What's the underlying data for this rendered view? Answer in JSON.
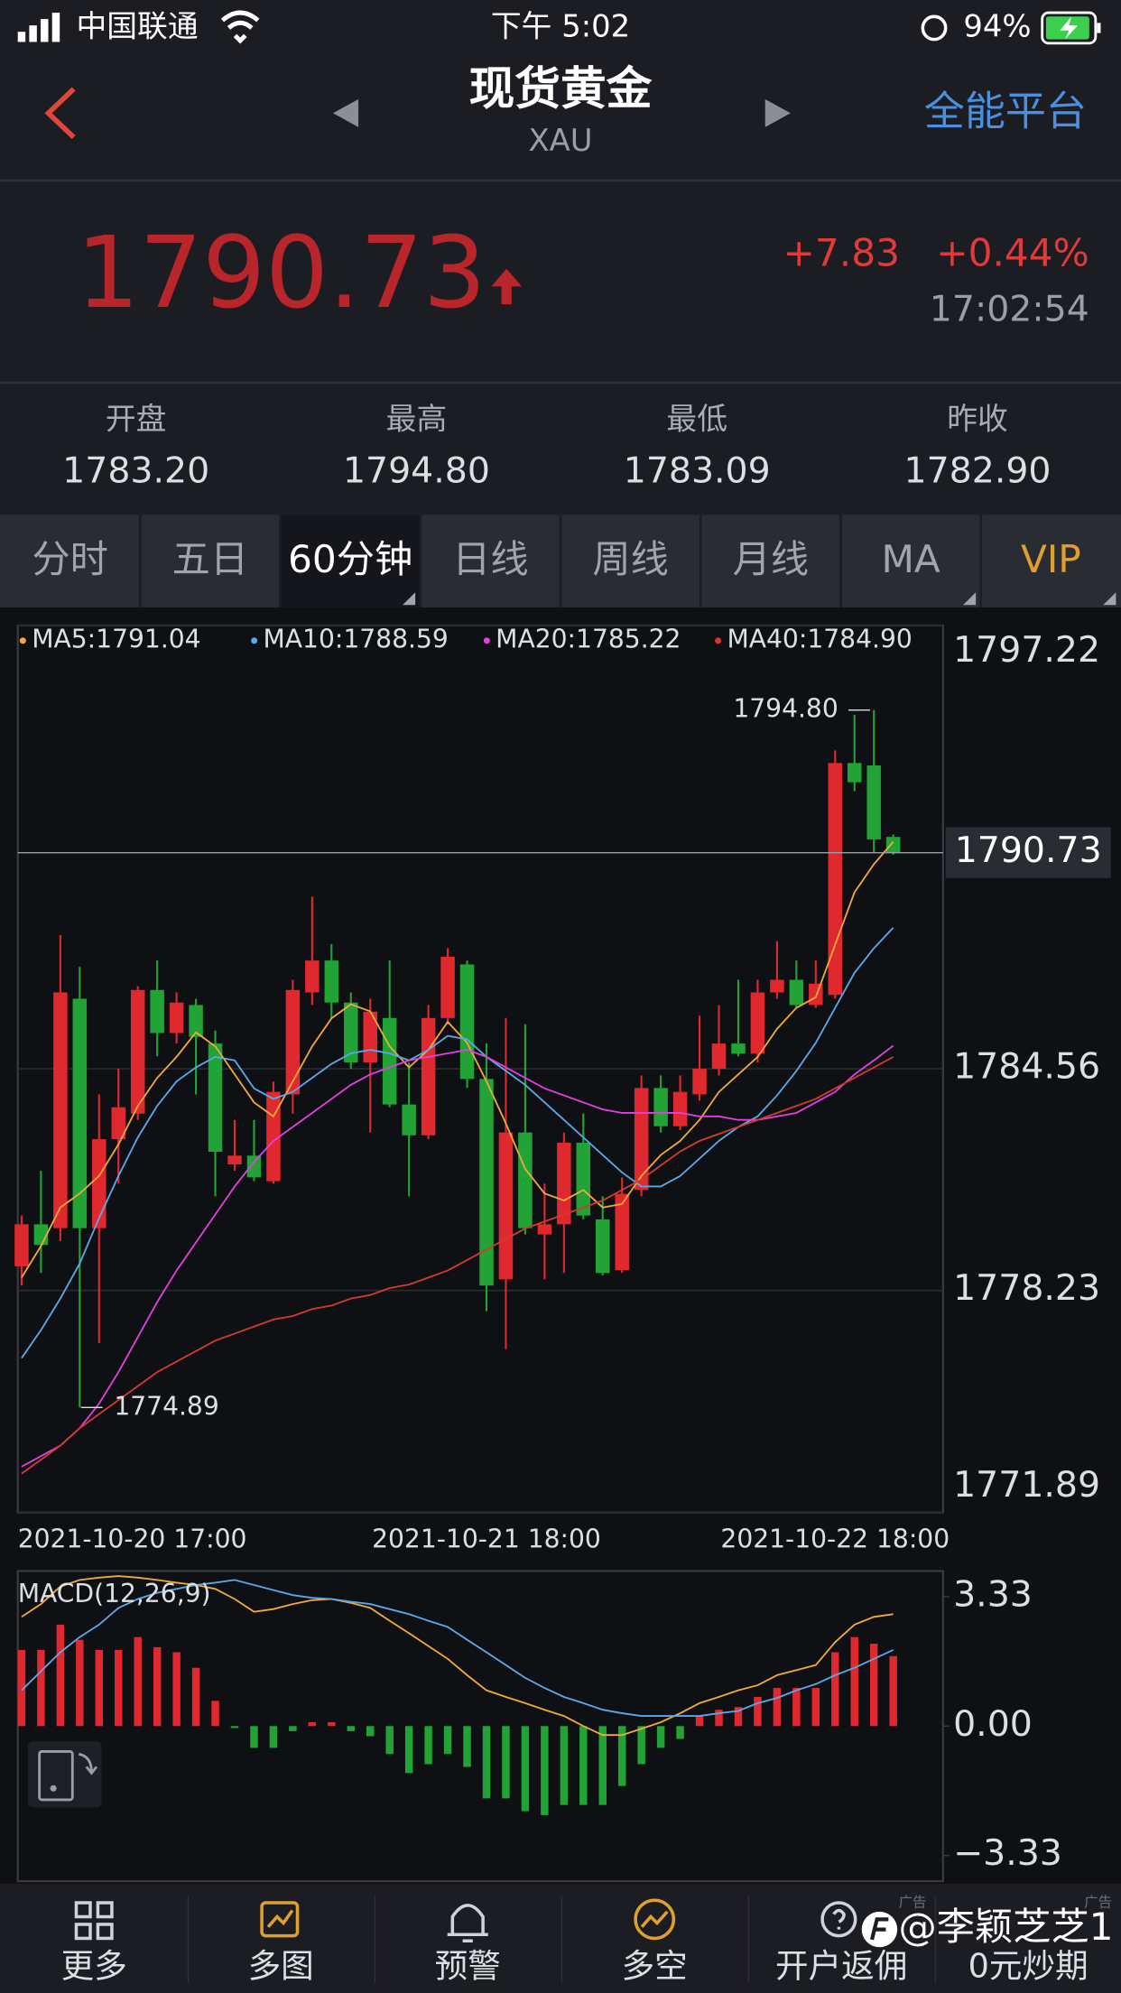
{
  "status_bar": {
    "carrier": "中国联通",
    "time": "下午 5:02",
    "battery": "94%"
  },
  "header": {
    "title": "现货黄金",
    "subtitle": "XAU",
    "platform": "全能平台"
  },
  "quote": {
    "price": "1790.73",
    "change": "+7.83",
    "change_pct": "+0.44%",
    "time": "17:02:54"
  },
  "stats": [
    {
      "label": "开盘",
      "value": "1783.20"
    },
    {
      "label": "最高",
      "value": "1794.80"
    },
    {
      "label": "最低",
      "value": "1783.09"
    },
    {
      "label": "昨收",
      "value": "1782.90"
    }
  ],
  "tabs": {
    "items": [
      "分时",
      "五日",
      "60分钟",
      "日线",
      "周线",
      "月线",
      "MA",
      "VIP"
    ],
    "selected": 2
  },
  "chart_data": [
    {
      "type": "candlestick",
      "up_color": "#e0292e",
      "down_color": "#21a336",
      "categories": [
        "2021-10-20 17:00",
        null,
        null,
        null,
        null,
        null,
        null,
        null,
        null,
        null,
        null,
        null,
        null,
        null,
        null,
        null,
        null,
        null,
        null,
        null,
        null,
        null,
        null,
        null,
        "2021-10-21 18:00",
        null,
        null,
        null,
        null,
        null,
        null,
        null,
        null,
        null,
        null,
        null,
        null,
        null,
        null,
        null,
        null,
        null,
        "2021-10-22 18:00",
        null,
        null,
        null
      ],
      "open": [
        1778.92,
        1780.12,
        1780.01,
        1786.56,
        1780.01,
        1782.55,
        1783.28,
        1786.81,
        1785.58,
        1786.38,
        1785.28,
        1781.83,
        1782.08,
        1781.35,
        1783.83,
        1786.74,
        1787.65,
        1786.45,
        1784.74,
        1786.01,
        1783.54,
        1782.66,
        1786.01,
        1787.54,
        1784.27,
        1778.55,
        1782.74,
        1779.83,
        1780.12,
        1782.45,
        1780.26,
        1778.81,
        1781.1,
        1784.01,
        1782.92,
        1783.83,
        1784.56,
        1785.28,
        1784.99,
        1786.74,
        1787.1,
        1786.38,
        1786.67,
        1793.29,
        1793.22,
        1791.18
      ],
      "high": [
        1780.37,
        1781.65,
        1788.38,
        1787.47,
        1783.83,
        1784.56,
        1786.92,
        1787.65,
        1786.74,
        1786.56,
        1785.65,
        1783.1,
        1783.1,
        1784.19,
        1787.1,
        1789.47,
        1788.12,
        1786.74,
        1786.56,
        1787.65,
        1784.74,
        1786.38,
        1788.01,
        1787.65,
        1785.28,
        1786.01,
        1785.83,
        1781.28,
        1782.74,
        1783.28,
        1780.92,
        1781.46,
        1784.37,
        1784.37,
        1784.37,
        1786.08,
        1786.38,
        1787.1,
        1787.1,
        1788.2,
        1787.65,
        1787.65,
        1793.65,
        1794.67,
        1794.8,
        1791.25
      ],
      "low": [
        1778.37,
        1778.73,
        1779.64,
        1774.89,
        1776.73,
        1781.28,
        1783.1,
        1784.92,
        1785.28,
        1783.83,
        1780.92,
        1781.65,
        1781.35,
        1781.28,
        1783.28,
        1786.38,
        1786.01,
        1784.56,
        1782.74,
        1783.46,
        1780.92,
        1782.55,
        1785.83,
        1784.01,
        1777.64,
        1776.55,
        1779.83,
        1778.55,
        1778.73,
        1780.26,
        1778.66,
        1778.73,
        1780.92,
        1782.74,
        1782.81,
        1783.65,
        1784.37,
        1784.92,
        1784.74,
        1786.56,
        1786.3,
        1786.3,
        1786.56,
        1792.49,
        1790.74,
        1790.67
      ],
      "close": [
        1780.12,
        1779.53,
        1786.74,
        1780.01,
        1782.55,
        1783.46,
        1786.81,
        1785.58,
        1786.45,
        1785.47,
        1782.19,
        1782.08,
        1781.46,
        1783.9,
        1786.81,
        1787.65,
        1786.45,
        1784.74,
        1786.19,
        1783.54,
        1782.66,
        1786.01,
        1787.76,
        1784.27,
        1778.37,
        1782.74,
        1780.01,
        1780.12,
        1782.45,
        1780.37,
        1778.73,
        1780.99,
        1784.01,
        1782.92,
        1783.9,
        1784.56,
        1785.28,
        1784.99,
        1786.74,
        1787.1,
        1786.38,
        1786.99,
        1793.29,
        1792.74,
        1791.11,
        1790.73
      ],
      "series": [
        {
          "name": "MA5:1791.04",
          "color": "#f2a93b",
          "values": [
            1778.6,
            1779.5,
            1780.6,
            1781.0,
            1781.5,
            1782.4,
            1783.5,
            1784.3,
            1784.9,
            1785.6,
            1785.2,
            1784.4,
            1783.6,
            1783.2,
            1784.2,
            1785.2,
            1786.0,
            1786.4,
            1786.2,
            1785.2,
            1784.6,
            1785.1,
            1785.9,
            1785.3,
            1784.2,
            1783.0,
            1781.7,
            1781.0,
            1780.8,
            1781.1,
            1780.6,
            1780.7,
            1781.5,
            1782.1,
            1782.5,
            1783.1,
            1783.9,
            1784.4,
            1784.9,
            1785.7,
            1786.3,
            1786.6,
            1788.1,
            1789.6,
            1790.4,
            1791.04
          ]
        },
        {
          "name": "MA10:1788.59",
          "color": "#5aa8e8",
          "values": [
            1776.3,
            1777.1,
            1778.0,
            1779.0,
            1780.3,
            1781.5,
            1782.6,
            1783.5,
            1784.2,
            1784.6,
            1784.9,
            1784.8,
            1784.0,
            1783.7,
            1783.9,
            1784.3,
            1784.7,
            1785.0,
            1785.1,
            1785.0,
            1784.8,
            1785.1,
            1785.5,
            1785.4,
            1784.9,
            1784.5,
            1784.1,
            1783.6,
            1783.1,
            1782.6,
            1782.1,
            1781.6,
            1781.2,
            1781.2,
            1781.5,
            1782.0,
            1782.5,
            1782.9,
            1783.2,
            1783.8,
            1784.5,
            1785.3,
            1786.3,
            1787.3,
            1788.0,
            1788.59
          ]
        },
        {
          "name": "MA20:1785.22",
          "color": "#e040e0",
          "values": [
            1773.2,
            1773.5,
            1773.8,
            1774.3,
            1775.0,
            1775.9,
            1776.9,
            1777.9,
            1778.8,
            1779.6,
            1780.4,
            1781.2,
            1781.9,
            1782.5,
            1782.9,
            1783.3,
            1783.7,
            1784.1,
            1784.4,
            1784.6,
            1784.8,
            1784.9,
            1785.0,
            1785.1,
            1784.9,
            1784.6,
            1784.3,
            1784.0,
            1783.8,
            1783.6,
            1783.4,
            1783.3,
            1783.3,
            1783.3,
            1783.3,
            1783.2,
            1783.2,
            1783.1,
            1783.1,
            1783.2,
            1783.3,
            1783.6,
            1783.9,
            1784.4,
            1784.8,
            1785.22
          ]
        },
        {
          "name": "MA40:1784.90",
          "color": "#d23a30",
          "values": [
            1773.0,
            1773.4,
            1773.8,
            1774.3,
            1774.7,
            1775.1,
            1775.5,
            1775.9,
            1776.2,
            1776.5,
            1776.8,
            1777.0,
            1777.2,
            1777.4,
            1777.5,
            1777.7,
            1777.8,
            1778.0,
            1778.1,
            1778.3,
            1778.4,
            1778.6,
            1778.8,
            1779.1,
            1779.4,
            1779.7,
            1780.0,
            1780.2,
            1780.4,
            1780.6,
            1780.8,
            1781.1,
            1781.4,
            1781.8,
            1782.2,
            1782.5,
            1782.7,
            1782.9,
            1783.1,
            1783.3,
            1783.5,
            1783.7,
            1784.0,
            1784.3,
            1784.6,
            1784.9
          ]
        }
      ],
      "ylim": [
        1771.89,
        1797.22
      ],
      "yticks": [
        1797.22,
        1784.56,
        1778.23,
        1771.89
      ],
      "grid": true,
      "last_price": 1790.73,
      "high_label": {
        "value": 1794.8,
        "label": "1794.80"
      },
      "low_label": 1774.89
    },
    {
      "type": "macd",
      "title": "MACD(12,26,9)",
      "up_color": "#e0292e",
      "down_color": "#21a336",
      "values": [
        1.96,
        1.96,
        2.61,
        2.22,
        1.96,
        1.96,
        2.29,
        2.03,
        1.9,
        1.5,
        0.65,
        -0.05,
        -0.56,
        -0.56,
        -0.13,
        0.1,
        0.1,
        -0.13,
        -0.26,
        -0.72,
        -1.21,
        -0.98,
        -0.72,
        -1.05,
        -1.86,
        -1.86,
        -2.19,
        -2.29,
        -2.03,
        -2.03,
        -2.03,
        -1.54,
        -0.98,
        -0.56,
        -0.33,
        0.26,
        0.42,
        0.49,
        0.75,
        0.98,
        0.98,
        0.98,
        1.9,
        2.29,
        2.12,
        1.8
      ],
      "series": [
        {
          "color": "#f2a93b",
          "values": [
            2.81,
            3.14,
            3.59,
            3.76,
            3.82,
            3.86,
            3.82,
            3.76,
            3.69,
            3.63,
            3.53,
            3.27,
            2.94,
            3.01,
            3.14,
            3.24,
            3.27,
            3.17,
            3.04,
            2.71,
            2.39,
            2.06,
            1.73,
            1.31,
            0.92,
            0.75,
            0.59,
            0.42,
            0.26,
            0.0,
            -0.23,
            -0.23,
            -0.07,
            0.1,
            0.33,
            0.59,
            0.75,
            0.92,
            1.05,
            1.31,
            1.44,
            1.57,
            2.16,
            2.61,
            2.81,
            2.88
          ]
        },
        {
          "color": "#5aa8e8",
          "values": [
            0.92,
            1.41,
            1.9,
            2.29,
            2.61,
            3.04,
            3.27,
            3.43,
            3.53,
            3.63,
            3.69,
            3.76,
            3.63,
            3.5,
            3.37,
            3.3,
            3.27,
            3.2,
            3.14,
            3.01,
            2.88,
            2.71,
            2.55,
            2.22,
            1.9,
            1.57,
            1.24,
            0.98,
            0.75,
            0.59,
            0.42,
            0.33,
            0.26,
            0.26,
            0.26,
            0.26,
            0.33,
            0.39,
            0.59,
            0.72,
            0.92,
            1.08,
            1.31,
            1.5,
            1.73,
            1.96
          ]
        }
      ],
      "ylim": [
        -3.99,
        3.99
      ],
      "yticks": [
        3.33,
        {
          "value": 0,
          "label": "0.00"
        },
        {
          "value": -3.33,
          "label": "−3.33"
        }
      ]
    }
  ],
  "toolbar": [
    "更多",
    "多图",
    "预警",
    "多空",
    "开户返佣",
    "0元炒期"
  ],
  "ad_tag": "广告",
  "watermark": "@李颖芝芝1"
}
